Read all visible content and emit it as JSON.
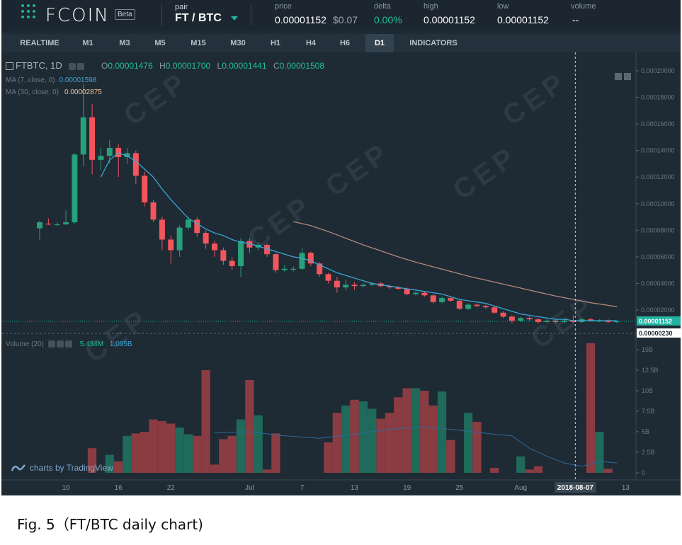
{
  "header": {
    "brand": "FCOIN",
    "beta": "Beta",
    "pair_label": "pair",
    "pair_value": "FT / BTC",
    "stats": [
      {
        "label": "price",
        "value": "0.00001152",
        "sub": "$0.07"
      },
      {
        "label": "delta",
        "value": "0.00%"
      },
      {
        "label": "high",
        "value": "0.00001152"
      },
      {
        "label": "low",
        "value": "0.00001152"
      },
      {
        "label": "volume",
        "value": "--"
      }
    ]
  },
  "tabs": [
    "REALTIME",
    "M1",
    "M3",
    "M5",
    "M15",
    "M30",
    "H1",
    "H4",
    "H6",
    "D1",
    "INDICATORS"
  ],
  "active_tab": "D1",
  "legend": {
    "symbol": "FTBTC, 1D",
    "open_label": "O",
    "open": "0.00001476",
    "high_label": "H",
    "high": "0.00001700",
    "low_label": "L",
    "low": "0.00001441",
    "close_label": "C",
    "close": "0.00001508",
    "ma7_label": "MA (7, close, 0)",
    "ma7": "0.00001598",
    "ma30_label": "MA (30, close, 0)",
    "ma30": "0.00002875"
  },
  "volume_legend": {
    "label": "Volume (20)",
    "v1": "5.434M",
    "v2": "1.095B"
  },
  "chart_data": {
    "type": "candlestick",
    "price_axis": [
      "0.00020000",
      "0.00018000",
      "0.00016000",
      "0.00014000",
      "0.00012000",
      "0.00010000",
      "0.00008000",
      "0.00006000",
      "0.00004000",
      "0.00002000"
    ],
    "price_axis_values": [
      0.0002,
      0.00018,
      0.00016,
      0.00014,
      0.00012,
      0.0001,
      8e-05,
      6e-05,
      4e-05,
      2e-05
    ],
    "current_price_label": "0.00001152",
    "current_price": 1.152e-05,
    "crosshair_price_label": "0.00000230",
    "crosshair_price": 2.3e-06,
    "volume_axis": [
      "15B",
      "12.5B",
      "10B",
      "7.5B",
      "5B",
      "2.5B",
      "0"
    ],
    "volume_axis_values": [
      15,
      12.5,
      10,
      7.5,
      5,
      2.5,
      0
    ],
    "x_ticks": [
      {
        "label": "10",
        "i": 3
      },
      {
        "label": "16",
        "i": 9
      },
      {
        "label": "22",
        "i": 15
      },
      {
        "label": "Jul",
        "i": 24
      },
      {
        "label": "7",
        "i": 30
      },
      {
        "label": "13",
        "i": 36
      },
      {
        "label": "19",
        "i": 42
      },
      {
        "label": "25",
        "i": 48
      },
      {
        "label": "Aug",
        "i": 55
      },
      {
        "label": "13",
        "i": 67
      }
    ],
    "crosshair_date": "2018-08-07",
    "crosshair_index": 61,
    "candles": [
      [
        8.15e-05,
        8.6e-05,
        8.7e-05,
        7.3e-05
      ],
      [
        8.5e-05,
        8.45e-05,
        8.9e-05,
        8.4e-05
      ],
      [
        8.45e-05,
        8.45e-05,
        8.6e-05,
        8.3e-05
      ],
      [
        8.45e-05,
        8.6e-05,
        9.5e-05,
        8.4e-05
      ],
      [
        8.6e-05,
        0.000137,
        0.000138,
        8.5e-05
      ],
      [
        0.000137,
        0.000165,
        0.00019,
        0.000128
      ],
      [
        0.000165,
        0.000133,
        0.000175,
        0.000122
      ],
      [
        0.000133,
        0.000136,
        0.000142,
        0.000125
      ],
      [
        0.000136,
        0.000142,
        0.000148,
        0.00013
      ],
      [
        0.000142,
        0.000135,
        0.000145,
        0.00012
      ],
      [
        0.000135,
        0.000138,
        0.000142,
        0.00013
      ],
      [
        0.000138,
        0.000121,
        0.00014,
        0.000115
      ],
      [
        0.000121,
        0.000101,
        0.000124,
        9.8e-05
      ],
      [
        0.000101,
        8.8e-05,
        0.000103,
        8.6e-05
      ],
      [
        8.8e-05,
        7.3e-05,
        9e-05,
        6.5e-05
      ],
      [
        7.3e-05,
        6.5e-05,
        7.6e-05,
        5.5e-05
      ],
      [
        6.5e-05,
        8.2e-05,
        8.4e-05,
        6e-05
      ],
      [
        8.2e-05,
        8.8e-05,
        9e-05,
        8e-05
      ],
      [
        8.8e-05,
        7.8e-05,
        9e-05,
        7.5e-05
      ],
      [
        7.8e-05,
        7e-05,
        8e-05,
        6.6e-05
      ],
      [
        7e-05,
        6.5e-05,
        7.2e-05,
        6e-05
      ],
      [
        6.5e-05,
        5.7e-05,
        6.7e-05,
        5.4e-05
      ],
      [
        5.7e-05,
        5.3e-05,
        6e-05,
        5e-05
      ],
      [
        5.3e-05,
        7.2e-05,
        7.4e-05,
        4.5e-05
      ],
      [
        7.2e-05,
        6.7e-05,
        7.4e-05,
        6.3e-05
      ],
      [
        6.7e-05,
        6.9e-05,
        7.1e-05,
        6.5e-05
      ],
      [
        6.9e-05,
        6.2e-05,
        7e-05,
        6e-05
      ],
      [
        6.2e-05,
        5e-05,
        6.3e-05,
        4.8e-05
      ],
      [
        5e-05,
        5.1e-05,
        5.4e-05,
        4.9e-05
      ],
      [
        5.1e-05,
        5.1e-05,
        5.3e-05,
        4.9e-05
      ],
      [
        5.1e-05,
        6.3e-05,
        6.7e-05,
        5e-05
      ],
      [
        6.3e-05,
        5.5e-05,
        6.4e-05,
        5.3e-05
      ],
      [
        5.5e-05,
        4.7e-05,
        5.6e-05,
        4.5e-05
      ],
      [
        4.7e-05,
        4.2e-05,
        4.8e-05,
        4e-05
      ],
      [
        4.2e-05,
        3.7e-05,
        4.5e-05,
        3.3e-05
      ],
      [
        3.7e-05,
        3.9e-05,
        4.3e-05,
        3.5e-05
      ],
      [
        3.9e-05,
        3.8e-05,
        4.1e-05,
        3.5e-05
      ],
      [
        3.8e-05,
        3.9e-05,
        4e-05,
        3.7e-05
      ],
      [
        3.9e-05,
        4e-05,
        4.1e-05,
        3.8e-05
      ],
      [
        4e-05,
        3.8e-05,
        4.1e-05,
        3.7e-05
      ],
      [
        3.8e-05,
        3.7e-05,
        3.9e-05,
        3.6e-05
      ],
      [
        3.7e-05,
        3.6e-05,
        3.8e-05,
        3.5e-05
      ],
      [
        3.6e-05,
        3.2e-05,
        3.7e-05,
        3.1e-05
      ],
      [
        3.2e-05,
        3.3e-05,
        3.4e-05,
        3.1e-05
      ],
      [
        3.3e-05,
        3.1e-05,
        3.4e-05,
        3e-05
      ],
      [
        3.1e-05,
        2.6e-05,
        3.2e-05,
        2.5e-05
      ],
      [
        2.6e-05,
        2.9e-05,
        3e-05,
        2.5e-05
      ],
      [
        2.9e-05,
        2.7e-05,
        3e-05,
        2.6e-05
      ],
      [
        2.7e-05,
        2.1e-05,
        2.8e-05,
        2e-05
      ],
      [
        2.1e-05,
        2.4e-05,
        2.5e-05,
        2e-05
      ],
      [
        2.4e-05,
        2.3e-05,
        2.5e-05,
        2.2e-05
      ],
      [
        2.3e-05,
        2.2e-05,
        2.4e-05,
        2.1e-05
      ],
      [
        2.2e-05,
        1.8e-05,
        2.3e-05,
        1.7e-05
      ],
      [
        1.8e-05,
        1.5e-05,
        1.9e-05,
        1.4e-05
      ],
      [
        1.5e-05,
        1.2e-05,
        1.6e-05,
        1e-05
      ],
      [
        1.2e-05,
        1.4e-05,
        1.5e-05,
        1.1e-05
      ],
      [
        1.4e-05,
        1.3e-05,
        1.5e-05,
        1.2e-05
      ],
      [
        1.3e-05,
        1.1e-05,
        1.4e-05,
        1e-05
      ],
      [
        1.1e-05,
        1.2e-05,
        1.3e-05,
        1e-05
      ],
      [
        1.2e-05,
        1.1e-05,
        1.3e-05,
        1e-05
      ],
      [
        1.1e-05,
        1.2e-05,
        1.3e-05,
        1e-05
      ],
      [
        1.2e-05,
        1.1e-05,
        1.6e-05,
        1e-05
      ],
      [
        1.1e-05,
        1.3e-05,
        1.4e-05,
        1e-05
      ],
      [
        1.3e-05,
        1.2e-05,
        1.4e-05,
        1.1e-05
      ],
      [
        1.2e-05,
        1.2e-05,
        1.3e-05,
        1.1e-05
      ],
      [
        1.2e-05,
        1.1e-05,
        1.3e-05,
        1e-05
      ],
      [
        1.1e-05,
        1.15e-05,
        1.2e-05,
        1e-05
      ]
    ],
    "ma7": [
      [
        7,
        0.00012
      ],
      [
        8,
        0.000133
      ],
      [
        9,
        0.000138
      ],
      [
        10,
        0.000136
      ],
      [
        11,
        0.000132
      ],
      [
        12,
        0.000126
      ],
      [
        13,
        0.00012
      ],
      [
        14,
        0.000111
      ],
      [
        15,
        0.000103
      ],
      [
        16,
        9.6e-05
      ],
      [
        17,
        8.9e-05
      ],
      [
        18,
        8.5e-05
      ],
      [
        19,
        8.1e-05
      ],
      [
        20,
        7.8e-05
      ],
      [
        21,
        7.6e-05
      ],
      [
        22,
        7.3e-05
      ],
      [
        23,
        7.1e-05
      ],
      [
        24,
        7e-05
      ],
      [
        25,
        6.8e-05
      ],
      [
        26,
        6.6e-05
      ],
      [
        27,
        6.4e-05
      ],
      [
        28,
        6.2e-05
      ],
      [
        29,
        6e-05
      ],
      [
        30,
        5.9e-05
      ],
      [
        31,
        5.7e-05
      ],
      [
        32,
        5.4e-05
      ],
      [
        33,
        5.1e-05
      ],
      [
        34,
        4.8e-05
      ],
      [
        35,
        4.6e-05
      ],
      [
        36,
        4.4e-05
      ],
      [
        37,
        4.2e-05
      ],
      [
        38,
        4e-05
      ],
      [
        39,
        3.9e-05
      ],
      [
        40,
        3.8e-05
      ],
      [
        41,
        3.7e-05
      ],
      [
        42,
        3.6e-05
      ],
      [
        43,
        3.5e-05
      ],
      [
        44,
        3.4e-05
      ],
      [
        45,
        3.3e-05
      ],
      [
        46,
        3.2e-05
      ],
      [
        47,
        3e-05
      ],
      [
        48,
        2.8e-05
      ],
      [
        49,
        2.7e-05
      ],
      [
        50,
        2.6e-05
      ],
      [
        51,
        2.5e-05
      ],
      [
        52,
        2.3e-05
      ],
      [
        53,
        2.1e-05
      ],
      [
        54,
        1.9e-05
      ],
      [
        55,
        1.7e-05
      ],
      [
        56,
        1.6e-05
      ],
      [
        57,
        1.5e-05
      ],
      [
        58,
        1.4e-05
      ],
      [
        59,
        1.3e-05
      ],
      [
        60,
        1.3e-05
      ],
      [
        61,
        1.2e-05
      ],
      [
        62,
        1.2e-05
      ],
      [
        63,
        1.2e-05
      ],
      [
        64,
        1.2e-05
      ],
      [
        65,
        1.2e-05
      ],
      [
        66,
        1.2e-05
      ]
    ],
    "ma30": [
      [
        29,
        8.65e-05
      ],
      [
        31,
        8.35e-05
      ],
      [
        33,
        7.9e-05
      ],
      [
        35,
        7.4e-05
      ],
      [
        37,
        6.9e-05
      ],
      [
        39,
        6.45e-05
      ],
      [
        41,
        6e-05
      ],
      [
        43,
        5.6e-05
      ],
      [
        45,
        5.25e-05
      ],
      [
        47,
        4.9e-05
      ],
      [
        49,
        4.55e-05
      ],
      [
        51,
        4.25e-05
      ],
      [
        53,
        3.95e-05
      ],
      [
        55,
        3.65e-05
      ],
      [
        57,
        3.35e-05
      ],
      [
        59,
        3.05e-05
      ],
      [
        61,
        2.8e-05
      ],
      [
        63,
        2.55e-05
      ],
      [
        65,
        2.35e-05
      ],
      [
        66,
        2.25e-05
      ]
    ],
    "volumes": [
      0,
      0,
      0,
      0,
      0,
      0,
      3.0,
      0,
      2.2,
      1.4,
      4.5,
      4.8,
      5.0,
      6.5,
      6.3,
      6.0,
      5.5,
      4.7,
      4.5,
      12.5,
      1.0,
      4.1,
      4.5,
      6.5,
      11.3,
      7.0,
      0.4,
      4.8,
      0,
      0,
      0,
      0,
      0,
      3.7,
      7.3,
      8.2,
      8.9,
      8.7,
      7.8,
      6.6,
      7.3,
      9.2,
      10.3,
      10.3,
      10.0,
      8.2,
      9.9,
      4.0,
      0,
      7.3,
      6.2,
      0,
      0.6,
      0,
      0,
      2.0,
      0.4,
      0.8,
      0,
      0,
      0,
      0,
      0,
      15.8,
      5.0,
      0.5
    ],
    "volumes_start_index": 0,
    "volume_ma": [
      [
        20,
        4.9
      ],
      [
        24,
        5.0
      ],
      [
        28,
        4.5
      ],
      [
        32,
        4.2
      ],
      [
        36,
        4.7
      ],
      [
        40,
        5.3
      ],
      [
        44,
        5.6
      ],
      [
        48,
        5.2
      ],
      [
        52,
        4.7
      ],
      [
        54,
        4.5
      ],
      [
        56,
        3.0
      ],
      [
        58,
        2.0
      ],
      [
        60,
        1.2
      ],
      [
        62,
        0.8
      ],
      [
        64,
        1.4
      ],
      [
        66,
        1.2
      ]
    ],
    "volume_unit": "B",
    "watermark": "CEP"
  },
  "attribution": "charts by TradingView",
  "caption": "Fig. 5（FT/BTC daily chart)",
  "colors": {
    "bg": "#1e2a34",
    "up": "#26a17a",
    "down": "#f2565c",
    "vol_up": "#1f6a5a",
    "vol_down": "#8a3c42",
    "ma7": "#3aa7d6",
    "ma30": "#b3897e",
    "accent": "#21b2a0"
  }
}
